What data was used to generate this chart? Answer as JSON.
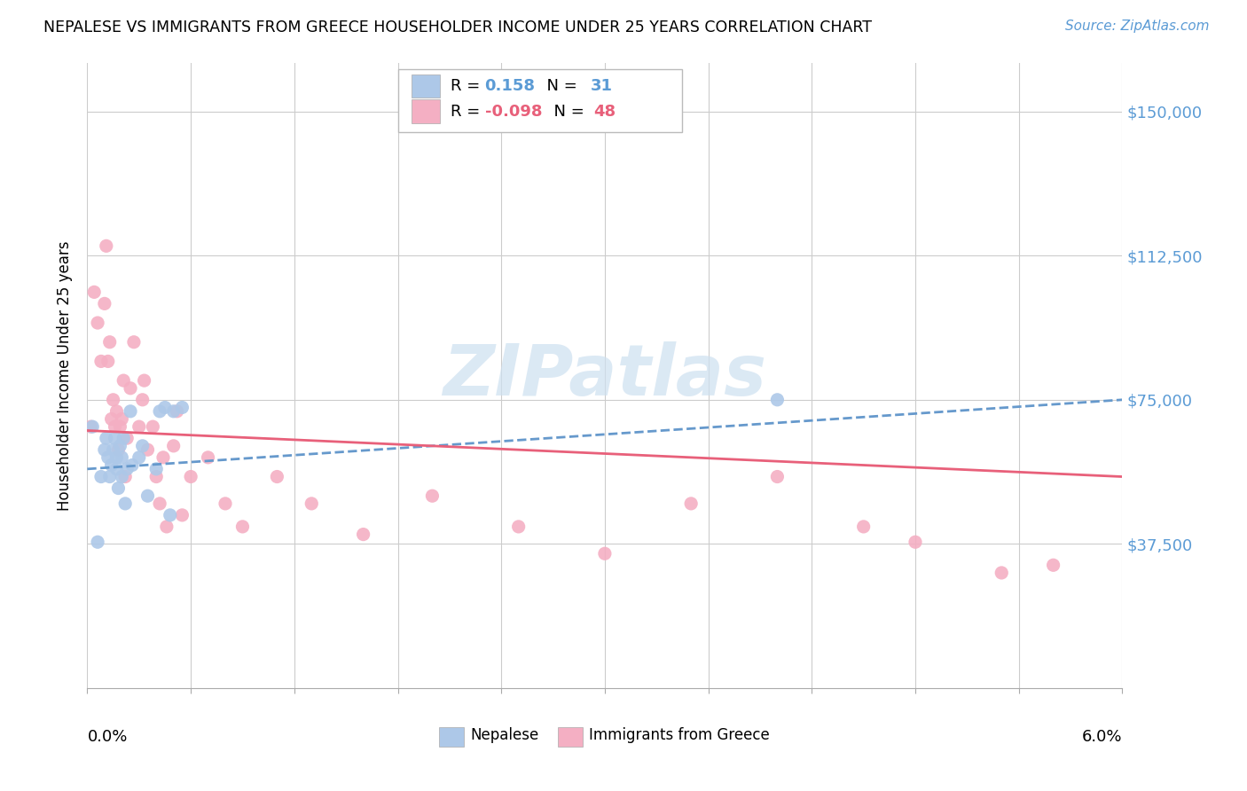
{
  "title": "NEPALESE VS IMMIGRANTS FROM GREECE HOUSEHOLDER INCOME UNDER 25 YEARS CORRELATION CHART",
  "source": "Source: ZipAtlas.com",
  "ylabel": "Householder Income Under 25 years",
  "ytick_labels": [
    "$37,500",
    "$75,000",
    "$112,500",
    "$150,000"
  ],
  "ytick_values": [
    37500,
    75000,
    112500,
    150000
  ],
  "xlim": [
    0.0,
    0.06
  ],
  "ylim": [
    0,
    162500
  ],
  "blue_color": "#adc8e8",
  "pink_color": "#f4afc3",
  "line_blue_color": "#6699cc",
  "line_pink_color": "#e8607a",
  "ytick_color": "#5b9bd5",
  "source_color": "#5b9bd5",
  "watermark_color": "#cde0f0",
  "nepalese_x": [
    0.0003,
    0.0006,
    0.0008,
    0.001,
    0.0011,
    0.0012,
    0.0013,
    0.0014,
    0.0015,
    0.0016,
    0.0017,
    0.0017,
    0.0018,
    0.0019,
    0.002,
    0.002,
    0.0021,
    0.0022,
    0.0023,
    0.0025,
    0.0026,
    0.003,
    0.0032,
    0.0035,
    0.004,
    0.0042,
    0.0045,
    0.0048,
    0.005,
    0.0055,
    0.04
  ],
  "nepalese_y": [
    68000,
    38000,
    55000,
    62000,
    65000,
    60000,
    55000,
    58000,
    62000,
    65000,
    60000,
    57000,
    52000,
    63000,
    60000,
    55000,
    65000,
    48000,
    57000,
    72000,
    58000,
    60000,
    63000,
    50000,
    57000,
    72000,
    73000,
    45000,
    72000,
    73000,
    75000
  ],
  "greece_x": [
    0.0002,
    0.0004,
    0.0006,
    0.0008,
    0.001,
    0.0011,
    0.0012,
    0.0013,
    0.0014,
    0.0015,
    0.0016,
    0.0017,
    0.0018,
    0.0019,
    0.002,
    0.0021,
    0.0022,
    0.0023,
    0.0025,
    0.0027,
    0.003,
    0.0032,
    0.0033,
    0.0035,
    0.0038,
    0.004,
    0.0042,
    0.0044,
    0.0046,
    0.005,
    0.0052,
    0.0055,
    0.006,
    0.007,
    0.008,
    0.009,
    0.011,
    0.013,
    0.016,
    0.02,
    0.025,
    0.03,
    0.035,
    0.04,
    0.045,
    0.048,
    0.053,
    0.056
  ],
  "greece_y": [
    68000,
    103000,
    95000,
    85000,
    100000,
    115000,
    85000,
    90000,
    70000,
    75000,
    68000,
    72000,
    62000,
    68000,
    70000,
    80000,
    55000,
    65000,
    78000,
    90000,
    68000,
    75000,
    80000,
    62000,
    68000,
    55000,
    48000,
    60000,
    42000,
    63000,
    72000,
    45000,
    55000,
    60000,
    48000,
    42000,
    55000,
    48000,
    40000,
    50000,
    42000,
    35000,
    48000,
    55000,
    42000,
    38000,
    30000,
    32000
  ]
}
